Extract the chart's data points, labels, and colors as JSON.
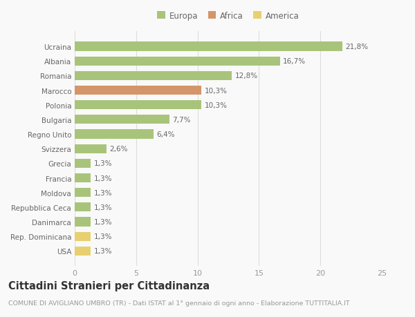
{
  "categories": [
    "USA",
    "Rep. Dominicana",
    "Danimarca",
    "Repubblica Ceca",
    "Moldova",
    "Francia",
    "Grecia",
    "Svizzera",
    "Regno Unito",
    "Bulgaria",
    "Polonia",
    "Marocco",
    "Romania",
    "Albania",
    "Ucraina"
  ],
  "values": [
    1.3,
    1.3,
    1.3,
    1.3,
    1.3,
    1.3,
    1.3,
    2.6,
    6.4,
    7.7,
    10.3,
    10.3,
    12.8,
    16.7,
    21.8
  ],
  "labels": [
    "1,3%",
    "1,3%",
    "1,3%",
    "1,3%",
    "1,3%",
    "1,3%",
    "1,3%",
    "2,6%",
    "6,4%",
    "7,7%",
    "10,3%",
    "10,3%",
    "12,8%",
    "16,7%",
    "21,8%"
  ],
  "colors": [
    "#e8d070",
    "#e8d070",
    "#a8c47a",
    "#a8c47a",
    "#a8c47a",
    "#a8c47a",
    "#a8c47a",
    "#a8c47a",
    "#a8c47a",
    "#a8c47a",
    "#a8c47a",
    "#d4956a",
    "#a8c47a",
    "#a8c47a",
    "#a8c47a"
  ],
  "legend": [
    {
      "label": "Europa",
      "color": "#a8c47a"
    },
    {
      "label": "Africa",
      "color": "#d4956a"
    },
    {
      "label": "America",
      "color": "#e8d070"
    }
  ],
  "xlim": [
    0,
    25
  ],
  "xticks": [
    0,
    5,
    10,
    15,
    20,
    25
  ],
  "title": "Cittadini Stranieri per Cittadinanza",
  "subtitle": "COMUNE DI AVIGLIANO UMBRO (TR) - Dati ISTAT al 1° gennaio di ogni anno - Elaborazione TUTTITALIA.IT",
  "bg_color": "#f9f9f9",
  "grid_color": "#dddddd",
  "bar_height": 0.62,
  "label_fontsize": 7.5,
  "ytick_fontsize": 7.5,
  "xtick_fontsize": 8.0,
  "title_fontsize": 10.5,
  "subtitle_fontsize": 6.8,
  "legend_fontsize": 8.5
}
